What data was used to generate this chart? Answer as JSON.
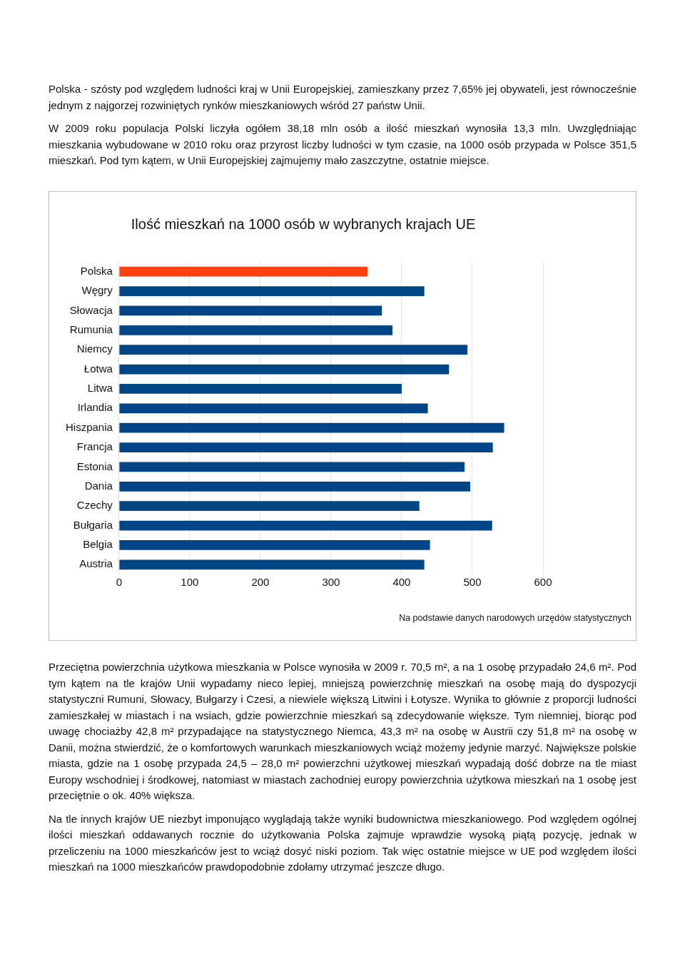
{
  "chart_data": {
    "type": "bar",
    "orientation": "horizontal",
    "title": "Ilość mieszkań na 1000 osób w wybranych krajach UE",
    "categories": [
      "Polska",
      "Węgry",
      "Słowacja",
      "Rumunia",
      "Niemcy",
      "Łotwa",
      "Litwa",
      "Irlandia",
      "Hiszpania",
      "Francja",
      "Estonia",
      "Dania",
      "Czechy",
      "Bułgaria",
      "Belgia",
      "Austria"
    ],
    "values": [
      351.5,
      432,
      372,
      387,
      493,
      467,
      400,
      437,
      545,
      529,
      489,
      497,
      425,
      528,
      440,
      432
    ],
    "colors": [
      "#ff4010",
      "#004586",
      "#004586",
      "#004586",
      "#004586",
      "#004586",
      "#004586",
      "#004586",
      "#004586",
      "#004586",
      "#004586",
      "#004586",
      "#004586",
      "#004586",
      "#004586",
      "#004586"
    ],
    "xlim": [
      0,
      600
    ],
    "xticks": [
      0,
      100,
      200,
      300,
      400,
      500,
      600
    ],
    "grid": "x",
    "annotations": [
      "Polska - szósty pod względem ludności kraj w Unii Europejskiej, zamieszkany przez 7,65% jej obywateli, jest równocześnie jednym z najgorzej rozwiniętych rynków mieszkaniowych wśród 27 państw Unii.",
      "W 2009 roku populacja Polski liczyła ogółem 38,18 mln osób a ilość mieszkań wynosiła 13,3 mln. Uwzględniając mieszkania wybudowane w 2010 roku oraz przyrost liczby ludności w tym czasie, na 1000 osób przypada w Polsce 351,5 mieszkań. Pod tym kątem, w Unii Europejskiej zajmujemy mało zaszczytne, ostatnie miejsce.",
      "Na podstawie danych narodowych urzędów statystycznych",
      "Przeciętna powierzchnia użytkowa mieszkania w Polsce wynosiła w 2009 r. 70,5 m², a na 1 osobę przypadało 24,6 m². Pod tym kątem na tle krajów Unii wypadamy nieco lepiej, mniejszą powierzchnię mieszkań na osobę mają do dyspozycji statystyczni Rumuni, Słowacy, Bułgarzy i Czesi, a niewiele większą Litwini i Łotysze. Wynika to głównie z proporcji ludności zamieszkałej w miastach i na wsiach, gdzie powierzchnie mieszkań są zdecydowanie większe. Tym niemniej, biorąc pod uwagę chociażby 42,8 m² przypadające na statystycznego Niemca, 43,3 m² na osobę w Austrii czy 51,8 m² na osobę w Danii, można stwierdzić, że o komfortowych warunkach mieszkaniowych wciąż możemy jedynie marzyć. Największe polskie miasta, gdzie na 1 osobę przypada 24,5 – 28,0 m² powierzchni użytkowej mieszkań wypadają dość dobrze na tle miast Europy wschodniej i środkowej, natomiast w miastach zachodniej europy powierzchnia użytkowa mieszkań na 1 osobę jest przeciętnie o ok. 40% większa.",
      "Na tle innych krajów UE niezbyt imponująco wyglądają także wyniki budownictwa mieszkaniowego. Pod względem ogólnej ilości mieszkań oddawanych rocznie do użytkowania Polska zajmuje wprawdzie wysoką piątą pozycję, jednak w przeliczeniu na 1000 mieszkańców jest to wciąż dosyć niski poziom. Tak więc ostatnie miejsce w UE pod względem ilości mieszkań na 1000 mieszkańców prawdopodobnie zdołamy utrzymać jeszcze długo."
    ]
  }
}
